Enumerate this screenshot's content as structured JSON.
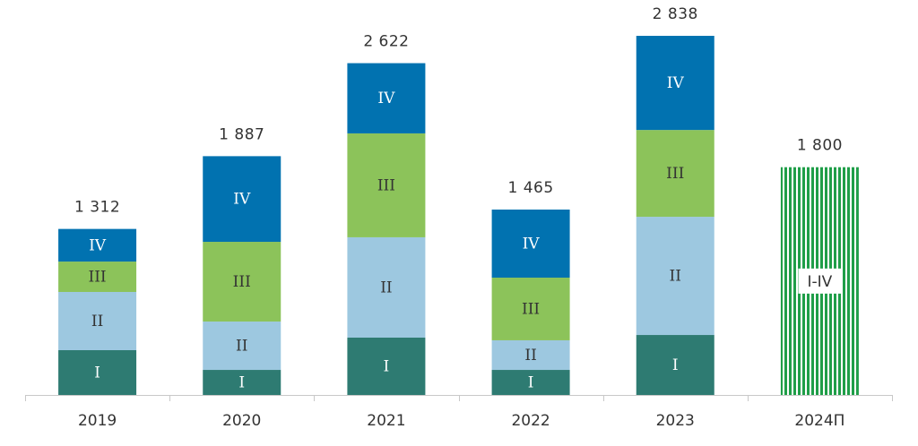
{
  "chart_data": {
    "type": "stacked_bar",
    "categories": [
      "2019",
      "2020",
      "2021",
      "2022",
      "2023",
      "2024П"
    ],
    "series": [
      {
        "name": "I",
        "color": "#2e7b72",
        "values": [
          354,
          198,
          453,
          198,
          474,
          null
        ]
      },
      {
        "name": "II",
        "color": "#9dc8e0",
        "values": [
          460,
          382,
          793,
          234,
          934,
          null
        ]
      },
      {
        "name": "III",
        "color": "#8cc35a",
        "values": [
          240,
          630,
          821,
          495,
          686,
          null
        ]
      },
      {
        "name": "IV",
        "color": "#0172b0",
        "values": [
          258,
          677,
          555,
          538,
          744,
          null
        ]
      },
      {
        "name": "I-IV",
        "color": "#1f9e48",
        "hatched": true,
        "values": [
          null,
          null,
          null,
          null,
          null,
          1800
        ]
      }
    ],
    "totals": [
      1312,
      1887,
      2622,
      1465,
      2838,
      1800
    ],
    "total_labels": [
      "1 312",
      "1 887",
      "2 622",
      "1 465",
      "2 838",
      "1 800"
    ],
    "ylim": [
      0,
      3100
    ]
  }
}
